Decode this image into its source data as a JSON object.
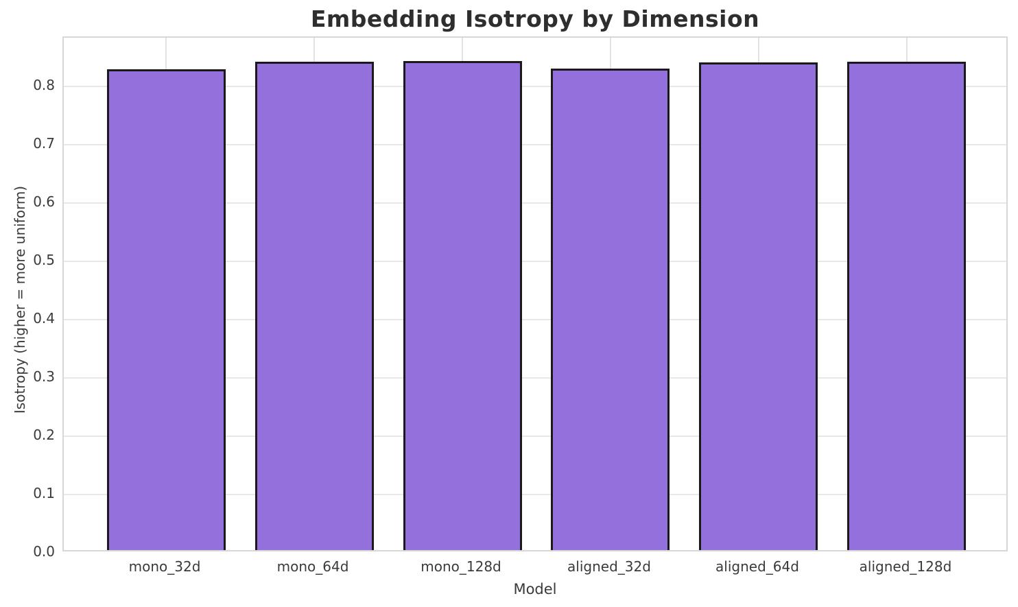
{
  "chart_data": {
    "type": "bar",
    "title": "Embedding Isotropy by Dimension",
    "xlabel": "Model",
    "ylabel": "Isotropy (higher = more uniform)",
    "categories": [
      "mono_32d",
      "mono_64d",
      "mono_128d",
      "aligned_32d",
      "aligned_64d",
      "aligned_128d"
    ],
    "values": [
      0.829,
      0.842,
      0.843,
      0.83,
      0.841,
      0.842
    ],
    "ylim": [
      0,
      0.885
    ],
    "yticks": [
      0.0,
      0.1,
      0.2,
      0.3,
      0.4,
      0.5,
      0.6,
      0.7,
      0.8
    ],
    "grid": true,
    "legend_position": "none",
    "colors": {
      "bar_fill": "#9370DB",
      "bar_edge": "#1a1a1a",
      "grid": "#e8e8e8",
      "spine": "#d7d7d7",
      "title_text": "#2e2e2e",
      "tick_text": "#3a3a3a"
    }
  }
}
